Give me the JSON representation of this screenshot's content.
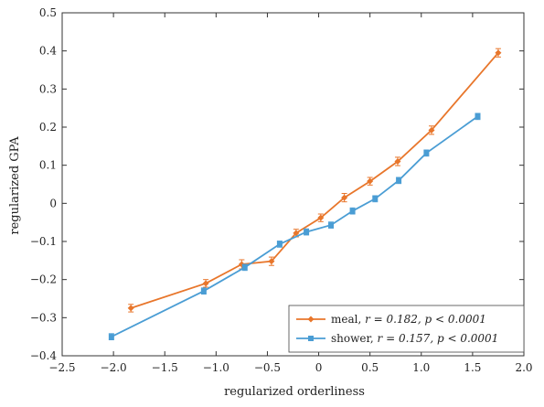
{
  "chart_data": {
    "type": "line",
    "xlabel": "regularized orderliness",
    "ylabel": "regularized GPA",
    "xlim": [
      -2.5,
      2.0
    ],
    "ylim": [
      -0.4,
      0.5
    ],
    "x_ticks": [
      -2.5,
      -2.0,
      -1.5,
      -1.0,
      -0.5,
      0,
      0.5,
      1.0,
      1.5,
      2.0
    ],
    "x_tick_labels": [
      "−2.5",
      "−2.0",
      "−1.5",
      "−1.0",
      "−0.5",
      "0",
      "0.5",
      "1.0",
      "1.5",
      "2.0"
    ],
    "y_ticks": [
      -0.4,
      -0.3,
      -0.2,
      -0.1,
      0,
      0.1,
      0.2,
      0.3,
      0.4,
      0.5
    ],
    "y_tick_labels": [
      "−0.4",
      "−0.3",
      "−0.2",
      "−0.1",
      "0",
      "0.1",
      "0.2",
      "0.3",
      "0.4",
      "0.5"
    ],
    "grid": false,
    "legend_position": "bottom-right",
    "series": [
      {
        "name": "meal",
        "stat_label": "r = 0.182, p < 0.0001",
        "color": "#E8762B",
        "marker": "diamond",
        "x": [
          -1.83,
          -1.1,
          -0.75,
          -0.46,
          -0.22,
          0.02,
          0.25,
          0.5,
          0.77,
          1.1,
          1.75
        ],
        "y": [
          -0.275,
          -0.21,
          -0.16,
          -0.152,
          -0.078,
          -0.038,
          0.015,
          0.058,
          0.11,
          0.192,
          0.395
        ],
        "err": [
          0.01,
          0.01,
          0.012,
          0.011,
          0.01,
          0.01,
          0.011,
          0.01,
          0.011,
          0.011,
          0.011
        ]
      },
      {
        "name": "shower",
        "stat_label": "r = 0.157, p < 0.0001",
        "color": "#4A9DD4",
        "marker": "square",
        "x": [
          -2.02,
          -1.12,
          -0.72,
          -0.38,
          -0.12,
          0.12,
          0.33,
          0.55,
          0.78,
          1.05,
          1.55
        ],
        "y": [
          -0.35,
          -0.23,
          -0.168,
          -0.107,
          -0.075,
          -0.057,
          -0.02,
          0.012,
          0.06,
          0.132,
          0.228
        ],
        "err": [
          0.008,
          0.008,
          0.008,
          0.008,
          0.008,
          0.008,
          0.008,
          0.008,
          0.008,
          0.008,
          0.008
        ]
      }
    ]
  }
}
